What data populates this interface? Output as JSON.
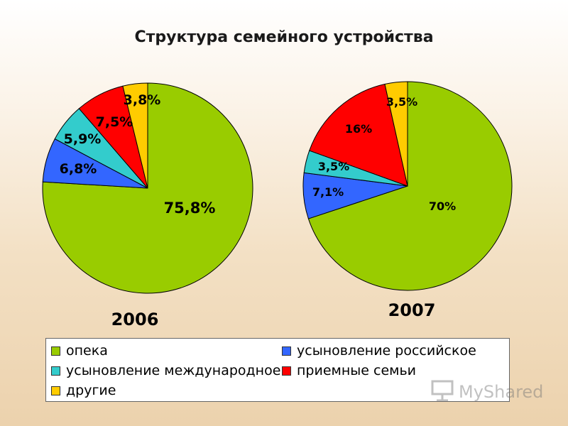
{
  "title": "Структура семейного устройства",
  "colors": {
    "опека": "#99cc00",
    "усыновление российское": "#3366ff",
    "усыновление международное": "#33cccc",
    "приемные семьи": "#ff0000",
    "другие": "#ffcc00"
  },
  "chart_data": [
    {
      "type": "pie",
      "year_label": "2006",
      "slices": [
        {
          "category": "опека",
          "value": 75.8,
          "label": "75,8%"
        },
        {
          "category": "усыновление российское",
          "value": 6.8,
          "label": "6,8%"
        },
        {
          "category": "усыновление международное",
          "value": 5.9,
          "label": "5,9%"
        },
        {
          "category": "приемные семьи",
          "value": 7.5,
          "label": "7,5%"
        },
        {
          "category": "другие",
          "value": 3.8,
          "label": "3,8%"
        }
      ]
    },
    {
      "type": "pie",
      "year_label": "2007",
      "slices": [
        {
          "category": "опека",
          "value": 70,
          "label": "70%"
        },
        {
          "category": "усыновление российское",
          "value": 7.1,
          "label": "7,1%"
        },
        {
          "category": "усыновление международное",
          "value": 3.5,
          "label": "3,5%"
        },
        {
          "category": "приемные семьи",
          "value": 16,
          "label": "16%"
        },
        {
          "category": "другие",
          "value": 3.5,
          "label": "3,5%"
        }
      ]
    }
  ],
  "legend": [
    {
      "label": "опека",
      "color": "#99cc00"
    },
    {
      "label": "усыновление российское",
      "color": "#3366ff"
    },
    {
      "label": "усыновление международное",
      "color": "#33cccc"
    },
    {
      "label": "приемные семьи",
      "color": "#ff0000"
    },
    {
      "label": "другие",
      "color": "#ffcc00"
    }
  ],
  "watermark": {
    "text": "MyShared",
    "icon": "presentation-board-icon"
  }
}
